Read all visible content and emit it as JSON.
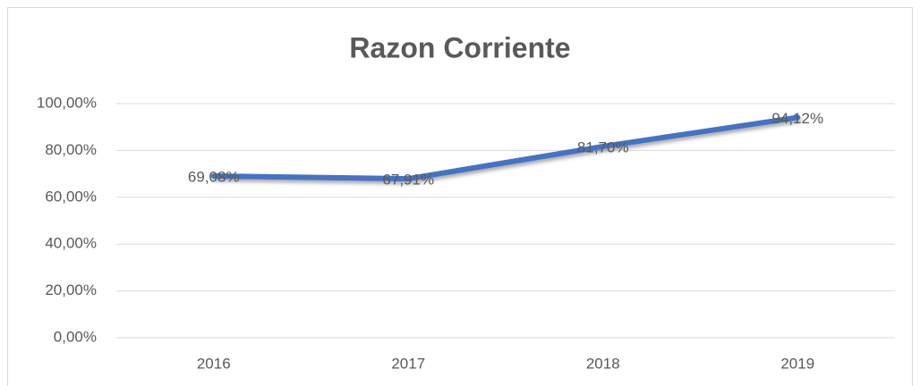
{
  "chart_data": {
    "type": "line",
    "title": "Razon Corriente",
    "categories": [
      "2016",
      "2017",
      "2018",
      "2019"
    ],
    "series": [
      {
        "name": "Razon Corriente",
        "color": "#4472c4",
        "values": [
          69.08,
          67.91,
          81.7,
          94.12
        ],
        "value_labels": [
          "69,08%",
          "67,91%",
          "81,70%",
          "94,12%"
        ]
      }
    ],
    "ylim": [
      0,
      100
    ],
    "yticks": [
      {
        "value": 0,
        "label": "0,00%"
      },
      {
        "value": 20,
        "label": "20,00%"
      },
      {
        "value": 40,
        "label": "40,00%"
      },
      {
        "value": 60,
        "label": "60,00%"
      },
      {
        "value": 80,
        "label": "80,00%"
      },
      {
        "value": 100,
        "label": "100,00%"
      }
    ],
    "grid": true
  }
}
